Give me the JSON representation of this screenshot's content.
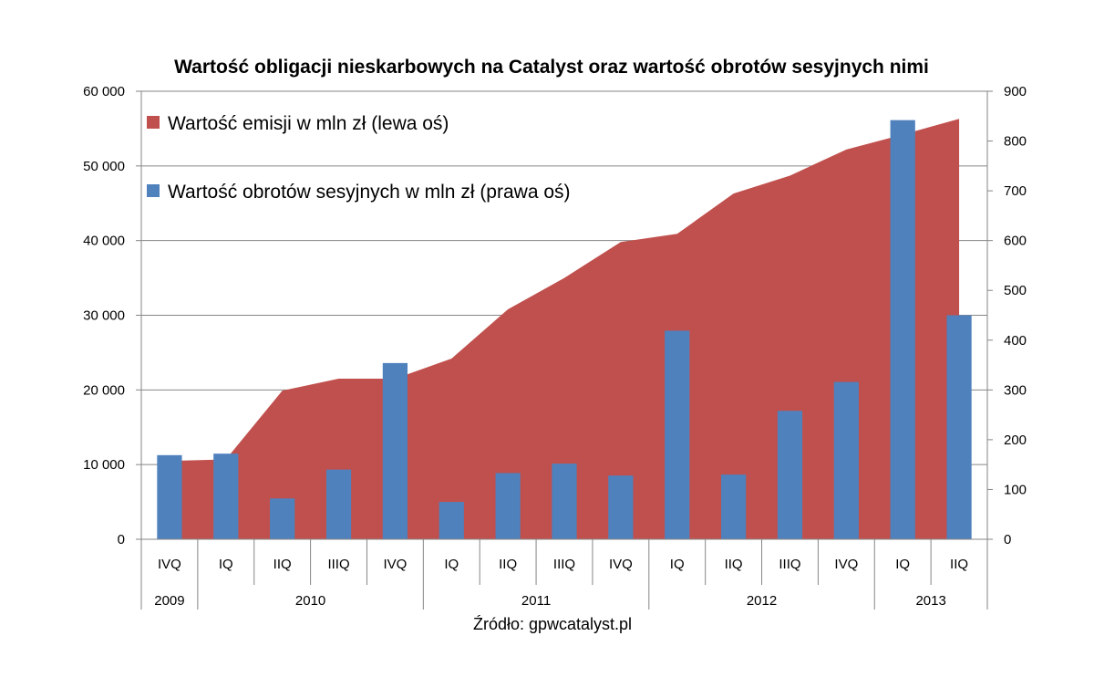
{
  "chart_data": {
    "type": "bar+area",
    "title": "Wartość obligacji nieskarbowych na Catalyst oraz wartość obrotów sesyjnych nimi",
    "source": "Źródło: gpwcatalyst.pl",
    "categories": [
      "IVQ",
      "IQ",
      "IIQ",
      "IIIQ",
      "IVQ",
      "IQ",
      "IIQ",
      "IIIQ",
      "IVQ",
      "IQ",
      "IIQ",
      "IIIQ",
      "IVQ",
      "IQ",
      "IIQ"
    ],
    "years": [
      {
        "label": "2009",
        "count": 1
      },
      {
        "label": "2010",
        "count": 4
      },
      {
        "label": "2011",
        "count": 4
      },
      {
        "label": "2012",
        "count": 4
      },
      {
        "label": "2013",
        "count": 2
      }
    ],
    "series": [
      {
        "name": "Wartość emisji w mln zł (lewa oś)",
        "type": "area",
        "axis": "left",
        "color": "#c0504d",
        "values": [
          10500,
          10700,
          19900,
          21500,
          21500,
          24200,
          30800,
          35000,
          39800,
          40900,
          46300,
          48700,
          52200,
          54200,
          56300
        ]
      },
      {
        "name": "Wartość obrotów sesyjnych w mln zł (prawa oś)",
        "type": "bar",
        "axis": "right",
        "color": "#4f81bd",
        "values": [
          169,
          172,
          82,
          140,
          354,
          75,
          133,
          152,
          128,
          419,
          130,
          258,
          316,
          842,
          450
        ]
      }
    ],
    "y_left": {
      "ticks": [
        "0",
        "10 000",
        "20 000",
        "30 000",
        "40 000",
        "50 000",
        "60 000"
      ],
      "ylim": [
        0,
        60000
      ]
    },
    "y_right": {
      "ticks": [
        "0",
        "100",
        "200",
        "300",
        "400",
        "500",
        "600",
        "700",
        "800",
        "900"
      ],
      "ylim": [
        0,
        900
      ]
    },
    "grid": true,
    "legend_position": "top-left"
  }
}
